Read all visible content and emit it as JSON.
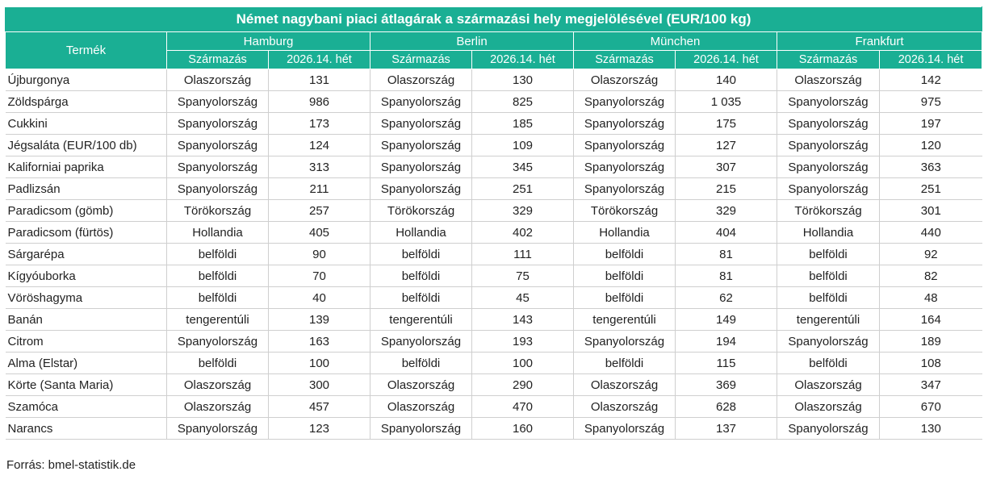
{
  "title": "Német nagybani piaci átlagárak a származási hely megjelölésével (EUR/100 kg)",
  "product_header": "Termék",
  "cities": [
    "Hamburg",
    "Berlin",
    "München",
    "Frankfurt"
  ],
  "sub_headers": {
    "origin": "Származás",
    "week": "2026.14. hét"
  },
  "rows": [
    {
      "product": "Újburgonya",
      "cells": [
        [
          "Olaszország",
          "131"
        ],
        [
          "Olaszország",
          "130"
        ],
        [
          "Olaszország",
          "140"
        ],
        [
          "Olaszország",
          "142"
        ]
      ]
    },
    {
      "product": "Zöldspárga",
      "cells": [
        [
          "Spanyolország",
          "986"
        ],
        [
          "Spanyolország",
          "825"
        ],
        [
          "Spanyolország",
          "1 035"
        ],
        [
          "Spanyolország",
          "975"
        ]
      ]
    },
    {
      "product": "Cukkini",
      "cells": [
        [
          "Spanyolország",
          "173"
        ],
        [
          "Spanyolország",
          "185"
        ],
        [
          "Spanyolország",
          "175"
        ],
        [
          "Spanyolország",
          "197"
        ]
      ]
    },
    {
      "product": "Jégsaláta (EUR/100 db)",
      "cells": [
        [
          "Spanyolország",
          "124"
        ],
        [
          "Spanyolország",
          "109"
        ],
        [
          "Spanyolország",
          "127"
        ],
        [
          "Spanyolország",
          "120"
        ]
      ]
    },
    {
      "product": "Kaliforniai paprika",
      "cells": [
        [
          "Spanyolország",
          "313"
        ],
        [
          "Spanyolország",
          "345"
        ],
        [
          "Spanyolország",
          "307"
        ],
        [
          "Spanyolország",
          "363"
        ]
      ]
    },
    {
      "product": "Padlizsán",
      "cells": [
        [
          "Spanyolország",
          "211"
        ],
        [
          "Spanyolország",
          "251"
        ],
        [
          "Spanyolország",
          "215"
        ],
        [
          "Spanyolország",
          "251"
        ]
      ]
    },
    {
      "product": "Paradicsom (gömb)",
      "cells": [
        [
          "Törökország",
          "257"
        ],
        [
          "Törökország",
          "329"
        ],
        [
          "Törökország",
          "329"
        ],
        [
          "Törökország",
          "301"
        ]
      ]
    },
    {
      "product": "Paradicsom (fürtös)",
      "cells": [
        [
          "Hollandia",
          "405"
        ],
        [
          "Hollandia",
          "402"
        ],
        [
          "Hollandia",
          "404"
        ],
        [
          "Hollandia",
          "440"
        ]
      ]
    },
    {
      "product": "Sárgarépa",
      "cells": [
        [
          "belföldi",
          "90"
        ],
        [
          "belföldi",
          "111"
        ],
        [
          "belföldi",
          "81"
        ],
        [
          "belföldi",
          "92"
        ]
      ]
    },
    {
      "product": "Kígyóuborka",
      "cells": [
        [
          "belföldi",
          "70"
        ],
        [
          "belföldi",
          "75"
        ],
        [
          "belföldi",
          "81"
        ],
        [
          "belföldi",
          "82"
        ]
      ]
    },
    {
      "product": "Vöröshagyma",
      "cells": [
        [
          "belföldi",
          "40"
        ],
        [
          "belföldi",
          "45"
        ],
        [
          "belföldi",
          "62"
        ],
        [
          "belföldi",
          "48"
        ]
      ]
    },
    {
      "product": "Banán",
      "cells": [
        [
          "tengerentúli",
          "139"
        ],
        [
          "tengerentúli",
          "143"
        ],
        [
          "tengerentúli",
          "149"
        ],
        [
          "tengerentúli",
          "164"
        ]
      ]
    },
    {
      "product": "Citrom",
      "cells": [
        [
          "Spanyolország",
          "163"
        ],
        [
          "Spanyolország",
          "193"
        ],
        [
          "Spanyolország",
          "194"
        ],
        [
          "Spanyolország",
          "189"
        ]
      ]
    },
    {
      "product": "Alma (Elstar)",
      "cells": [
        [
          "belföldi",
          "100"
        ],
        [
          "belföldi",
          "100"
        ],
        [
          "belföldi",
          "115"
        ],
        [
          "belföldi",
          "108"
        ]
      ]
    },
    {
      "product": "Körte (Santa Maria)",
      "cells": [
        [
          "Olaszország",
          "300"
        ],
        [
          "Olaszország",
          "290"
        ],
        [
          "Olaszország",
          "369"
        ],
        [
          "Olaszország",
          "347"
        ]
      ]
    },
    {
      "product": "Szamóca",
      "cells": [
        [
          "Olaszország",
          "457"
        ],
        [
          "Olaszország",
          "470"
        ],
        [
          "Olaszország",
          "628"
        ],
        [
          "Olaszország",
          "670"
        ]
      ]
    },
    {
      "product": "Narancs",
      "cells": [
        [
          "Spanyolország",
          "123"
        ],
        [
          "Spanyolország",
          "160"
        ],
        [
          "Spanyolország",
          "137"
        ],
        [
          "Spanyolország",
          "130"
        ]
      ]
    }
  ],
  "source": "Forrás: bmel-statistik.de",
  "colors": {
    "header_bg": "#1aaf94",
    "header_text": "#ffffff",
    "grid": "#cfcfcf"
  }
}
